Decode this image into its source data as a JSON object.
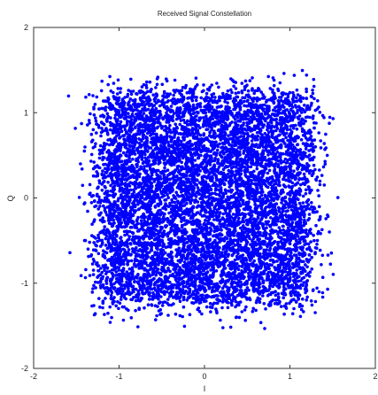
{
  "chart_data": {
    "type": "scatter",
    "title": "Received Signal Constellation",
    "xlabel": "I",
    "ylabel": "Q",
    "xlim": [
      -2,
      2
    ],
    "ylim": [
      -2,
      2
    ],
    "xticks": [
      -2,
      -1,
      0,
      1,
      2
    ],
    "yticks": [
      -2,
      -1,
      0,
      1,
      2
    ],
    "grid": false,
    "marker_color": "#0000ff",
    "series": [
      {
        "constellation_points": [
          [
            -1,
            1
          ],
          [
            -0.6,
            1
          ],
          [
            -0.2,
            1
          ],
          [
            0.2,
            1
          ],
          [
            0.6,
            1
          ],
          [
            1,
            1
          ],
          [
            -1,
            0.6
          ],
          [
            -0.6,
            0.6
          ],
          [
            -0.2,
            0.6
          ],
          [
            0.2,
            0.6
          ],
          [
            0.6,
            0.6
          ],
          [
            1,
            0.6
          ],
          [
            -1,
            0.2
          ],
          [
            -0.6,
            0.2
          ],
          [
            -0.2,
            0.2
          ],
          [
            0.2,
            0.2
          ],
          [
            0.6,
            0.2
          ],
          [
            1,
            0.2
          ],
          [
            -1,
            -0.2
          ],
          [
            -0.6,
            -0.2
          ],
          [
            -0.2,
            -0.2
          ],
          [
            0.2,
            -0.2
          ],
          [
            0.6,
            -0.2
          ],
          [
            1,
            -0.2
          ],
          [
            -1,
            -0.6
          ],
          [
            -0.6,
            -0.6
          ],
          [
            -0.2,
            -0.6
          ],
          [
            0.2,
            -0.6
          ],
          [
            0.6,
            -0.6
          ],
          [
            1,
            -0.6
          ],
          [
            -1,
            -1
          ],
          [
            -0.6,
            -1
          ],
          [
            -0.2,
            -1
          ],
          [
            0.2,
            -1
          ],
          [
            0.6,
            -1
          ],
          [
            1,
            -1
          ]
        ],
        "noise_sigma": 0.17,
        "point_extent": [
          -1.65,
          1.7,
          -1.6,
          1.55
        ]
      }
    ]
  }
}
